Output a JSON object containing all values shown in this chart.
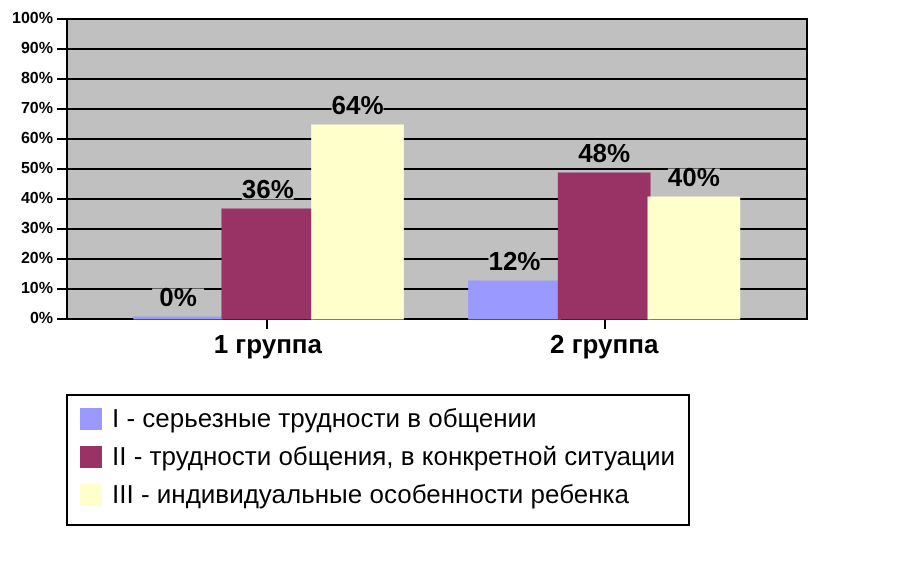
{
  "chart_data": {
    "type": "bar",
    "categories": [
      "1 группа",
      "2 группа"
    ],
    "series": [
      {
        "name": "I - серьезные трудности в общении",
        "color": "#9999ff",
        "values": [
          0,
          12
        ],
        "value_labels": [
          "0%",
          "12%"
        ]
      },
      {
        "name": "II - трудности общения, в конкретной ситуации",
        "color": "#993366",
        "values": [
          36,
          48
        ],
        "value_labels": [
          "36%",
          "48%"
        ]
      },
      {
        "name": "III - индивидуальные особенности ребенка",
        "color": "#ffffcc",
        "values": [
          64,
          40
        ],
        "value_labels": [
          "64%",
          "40%"
        ]
      }
    ],
    "ylim": [
      0,
      100
    ],
    "yticks": [
      {
        "value": 0,
        "label": "0%"
      },
      {
        "value": 10,
        "label": "10%"
      },
      {
        "value": 20,
        "label": "20%"
      },
      {
        "value": 30,
        "label": "30%"
      },
      {
        "value": 40,
        "label": "40%"
      },
      {
        "value": 50,
        "label": "50%"
      },
      {
        "value": 60,
        "label": "60%"
      },
      {
        "value": 70,
        "label": "70%"
      },
      {
        "value": 80,
        "label": "80%"
      },
      {
        "value": 90,
        "label": "90%"
      },
      {
        "value": 100,
        "label": "100%"
      }
    ],
    "grid": "y",
    "legend": "bottom"
  }
}
